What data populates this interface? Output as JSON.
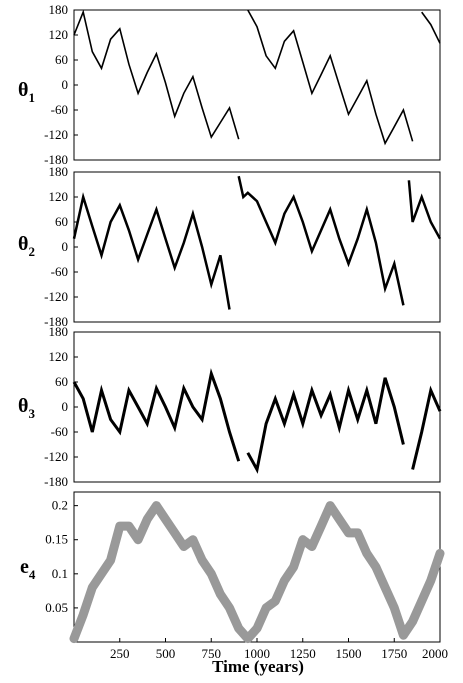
{
  "chart_data": [
    {
      "type": "line",
      "title": "",
      "ylabel_main": "θ",
      "ylabel_sub": "1",
      "xlim": [
        0,
        2000
      ],
      "ylim": [
        -180,
        180
      ],
      "yticks": [
        "180",
        "120",
        "60",
        "0",
        "-60",
        "-120",
        "-180"
      ],
      "grid": false,
      "color": "#000000",
      "note_series": "wrapped angle, decreasing trend with ~300 yr oscillation",
      "series": [
        {
          "x": [
            0,
            50,
            100,
            150,
            200,
            250,
            300,
            350,
            400,
            450,
            500,
            550,
            600,
            650,
            700,
            750,
            800,
            850,
            900,
            950,
            1000,
            1050,
            1100,
            1150,
            1200,
            1250,
            1300,
            1350,
            1400,
            1450,
            1500,
            1550,
            1600,
            1650,
            1700,
            1750,
            1800,
            1850,
            1900,
            1950,
            2000
          ],
          "y": [
            120,
            175,
            80,
            40,
            110,
            135,
            50,
            -20,
            30,
            75,
            5,
            -75,
            -20,
            20,
            -55,
            -125,
            -90,
            -55,
            -130,
            180,
            140,
            70,
            40,
            105,
            130,
            55,
            -20,
            25,
            70,
            0,
            -70,
            -30,
            10,
            -70,
            -140,
            -100,
            -60,
            -135,
            175,
            145,
            100
          ]
        }
      ]
    },
    {
      "type": "line",
      "title": "",
      "ylabel_main": "θ",
      "ylabel_sub": "2",
      "xlim": [
        0,
        2000
      ],
      "ylim": [
        -180,
        180
      ],
      "yticks": [
        "180",
        "120",
        "60",
        "0",
        "-60",
        "-120",
        "-180"
      ],
      "grid": false,
      "color": "#000000",
      "series": [
        {
          "x": [
            0,
            50,
            100,
            150,
            200,
            250,
            300,
            350,
            400,
            450,
            500,
            550,
            600,
            650,
            700,
            750,
            800,
            850,
            900,
            925,
            950,
            1000,
            1050,
            1100,
            1150,
            1200,
            1250,
            1300,
            1350,
            1400,
            1450,
            1500,
            1550,
            1600,
            1650,
            1700,
            1750,
            1800,
            1830,
            1850,
            1900,
            1950,
            2000
          ],
          "y": [
            20,
            120,
            50,
            -20,
            60,
            100,
            40,
            -30,
            30,
            90,
            20,
            -50,
            10,
            80,
            0,
            -90,
            -20,
            -150,
            170,
            120,
            130,
            110,
            60,
            10,
            80,
            120,
            60,
            -10,
            40,
            90,
            20,
            -40,
            20,
            90,
            10,
            -100,
            -40,
            -140,
            160,
            60,
            120,
            60,
            20
          ]
        }
      ]
    },
    {
      "type": "line",
      "title": "",
      "ylabel_main": "θ",
      "ylabel_sub": "3",
      "xlim": [
        0,
        2000
      ],
      "ylim": [
        -180,
        180
      ],
      "yticks": [
        "180",
        "120",
        "60",
        "0",
        "-60",
        "-120",
        "-180"
      ],
      "grid": false,
      "color": "#000000",
      "series": [
        {
          "x": [
            0,
            50,
            100,
            150,
            200,
            250,
            300,
            350,
            400,
            450,
            500,
            550,
            600,
            650,
            700,
            750,
            800,
            850,
            900,
            925,
            950,
            1000,
            1050,
            1100,
            1150,
            1200,
            1250,
            1300,
            1350,
            1400,
            1450,
            1500,
            1550,
            1600,
            1650,
            1700,
            1750,
            1800,
            1830,
            1850,
            1900,
            1950,
            2000
          ],
          "y": [
            60,
            20,
            -60,
            40,
            -30,
            -60,
            40,
            0,
            -40,
            45,
            0,
            -50,
            45,
            0,
            -30,
            80,
            20,
            -60,
            -130,
            180,
            -110,
            -150,
            -40,
            20,
            -40,
            30,
            -40,
            40,
            -20,
            30,
            -50,
            40,
            -30,
            40,
            -40,
            70,
            0,
            -90,
            180,
            -150,
            -60,
            40,
            -10
          ]
        }
      ]
    },
    {
      "type": "line",
      "title": "",
      "ylabel_main": "e",
      "ylabel_sub": "4",
      "xlabel": "Time  (years)",
      "xlim": [
        0,
        2000
      ],
      "ylim": [
        0,
        0.22
      ],
      "xticks": [
        "250",
        "500",
        "750",
        "1000",
        "1250",
        "1500",
        "1750",
        "2000"
      ],
      "yticks": [
        "0.2",
        "0.15",
        "0.1",
        "0.05"
      ],
      "grid": false,
      "color": "#999999",
      "series": [
        {
          "x": [
            0,
            50,
            100,
            150,
            200,
            250,
            300,
            350,
            400,
            450,
            500,
            550,
            600,
            650,
            700,
            750,
            800,
            850,
            900,
            950,
            1000,
            1050,
            1100,
            1150,
            1200,
            1250,
            1300,
            1350,
            1400,
            1450,
            1500,
            1550,
            1600,
            1650,
            1700,
            1750,
            1800,
            1850,
            1900,
            1950,
            2000
          ],
          "y": [
            0.005,
            0.04,
            0.08,
            0.1,
            0.12,
            0.17,
            0.17,
            0.15,
            0.18,
            0.2,
            0.18,
            0.16,
            0.14,
            0.15,
            0.12,
            0.1,
            0.07,
            0.05,
            0.02,
            0.005,
            0.02,
            0.05,
            0.06,
            0.09,
            0.11,
            0.15,
            0.14,
            0.17,
            0.2,
            0.18,
            0.16,
            0.16,
            0.13,
            0.11,
            0.08,
            0.05,
            0.01,
            0.03,
            0.06,
            0.09,
            0.13
          ]
        }
      ]
    }
  ]
}
